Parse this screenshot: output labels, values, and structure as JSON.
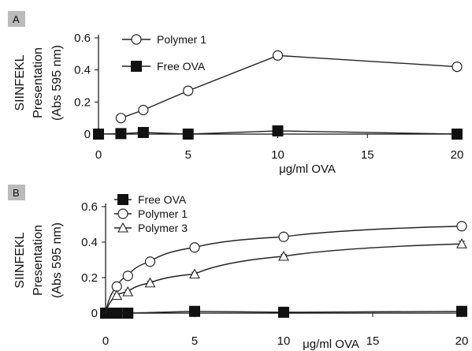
{
  "chart_data": [
    {
      "panel": "A",
      "type": "line",
      "xlabel": "μg/ml OVA",
      "ylabel": [
        "SIINFEKL",
        "Presentation",
        "(Abs 595 nm)"
      ],
      "xticks": [
        0,
        5,
        10,
        15,
        20
      ],
      "yticks": [
        0,
        0.2,
        0.4,
        0.6
      ],
      "xlim": [
        0,
        20
      ],
      "ylim": [
        0,
        0.6
      ],
      "legend_position": "top-left",
      "series": [
        {
          "name": "Polymer 1",
          "marker": "circle-open",
          "x": [
            1.25,
            2.5,
            5,
            10,
            20
          ],
          "y": [
            0.1,
            0.15,
            0.27,
            0.49,
            0.42
          ],
          "err": [
            0.02,
            0.02,
            0.025,
            0.025,
            0.02
          ]
        },
        {
          "name": "Free OVA",
          "marker": "square-filled",
          "x": [
            0,
            1.25,
            2.5,
            5,
            10,
            20
          ],
          "y": [
            0,
            0.003,
            0.01,
            0,
            0.02,
            0
          ],
          "err": [
            0,
            0,
            0,
            0,
            0,
            0
          ]
        }
      ]
    },
    {
      "panel": "B",
      "type": "line",
      "xlabel": "μg/ml OVA",
      "ylabel": [
        "SIINFEKL",
        "Presentation",
        "(Abs 595 nm)"
      ],
      "xticks": [
        0,
        5,
        10,
        15,
        20
      ],
      "yticks": [
        0,
        0.2,
        0.4,
        0.6
      ],
      "xlim": [
        0,
        20
      ],
      "ylim": [
        0,
        0.6
      ],
      "legend_position": "top-left",
      "series": [
        {
          "name": "Free OVA",
          "marker": "square-filled",
          "x": [
            0,
            0.31,
            0.63,
            1.25,
            5,
            10,
            20
          ],
          "y": [
            0,
            0,
            0,
            0,
            0.01,
            0.005,
            0.01
          ],
          "err": [
            0,
            0,
            0,
            0,
            0,
            0,
            0
          ]
        },
        {
          "name": "Polymer 1",
          "marker": "circle-open",
          "x": [
            0.63,
            1.25,
            2.5,
            5,
            10,
            20
          ],
          "y": [
            0.15,
            0.21,
            0.29,
            0.37,
            0.43,
            0.49
          ],
          "err": [
            0.01,
            0.01,
            0.015,
            0.02,
            0.01,
            0.02
          ]
        },
        {
          "name": "Polymer 3",
          "marker": "triangle-open",
          "x": [
            0.63,
            1.25,
            2.5,
            5,
            10,
            20
          ],
          "y": [
            0.1,
            0.12,
            0.17,
            0.22,
            0.32,
            0.39
          ],
          "err": [
            0.01,
            0.01,
            0.01,
            0.01,
            0.01,
            0.015
          ]
        }
      ]
    }
  ]
}
